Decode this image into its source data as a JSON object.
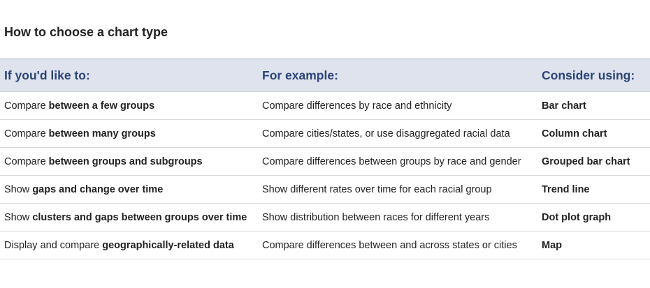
{
  "title": "How to choose a chart type",
  "headers": {
    "col1": "If you'd like to:",
    "col2": "For example:",
    "col3": "Consider using:"
  },
  "rows": [
    {
      "action_prefix": "Compare ",
      "action_bold": "between a few groups",
      "example": "Compare differences by race and ethnicity",
      "chart": "Bar chart"
    },
    {
      "action_prefix": "Compare ",
      "action_bold": "between many groups",
      "example": "Compare cities/states, or use disaggregated racial data",
      "chart": "Column chart"
    },
    {
      "action_prefix": "Compare ",
      "action_bold": "between groups and subgroups",
      "example": "Compare differences between groups by race and gender",
      "chart": "Grouped bar chart"
    },
    {
      "action_prefix": "Show ",
      "action_bold": "gaps and change over time",
      "example": "Show different rates over time for each racial group",
      "chart": "Trend line"
    },
    {
      "action_prefix": "Show ",
      "action_bold": "clusters and gaps between groups over time",
      "example": "Show distribution between races for different years",
      "chart": "Dot plot graph"
    },
    {
      "action_prefix": "Display and compare ",
      "action_bold": "geographically-related data",
      "example": "Compare differences between and across states or cities",
      "chart": "Map"
    }
  ]
}
